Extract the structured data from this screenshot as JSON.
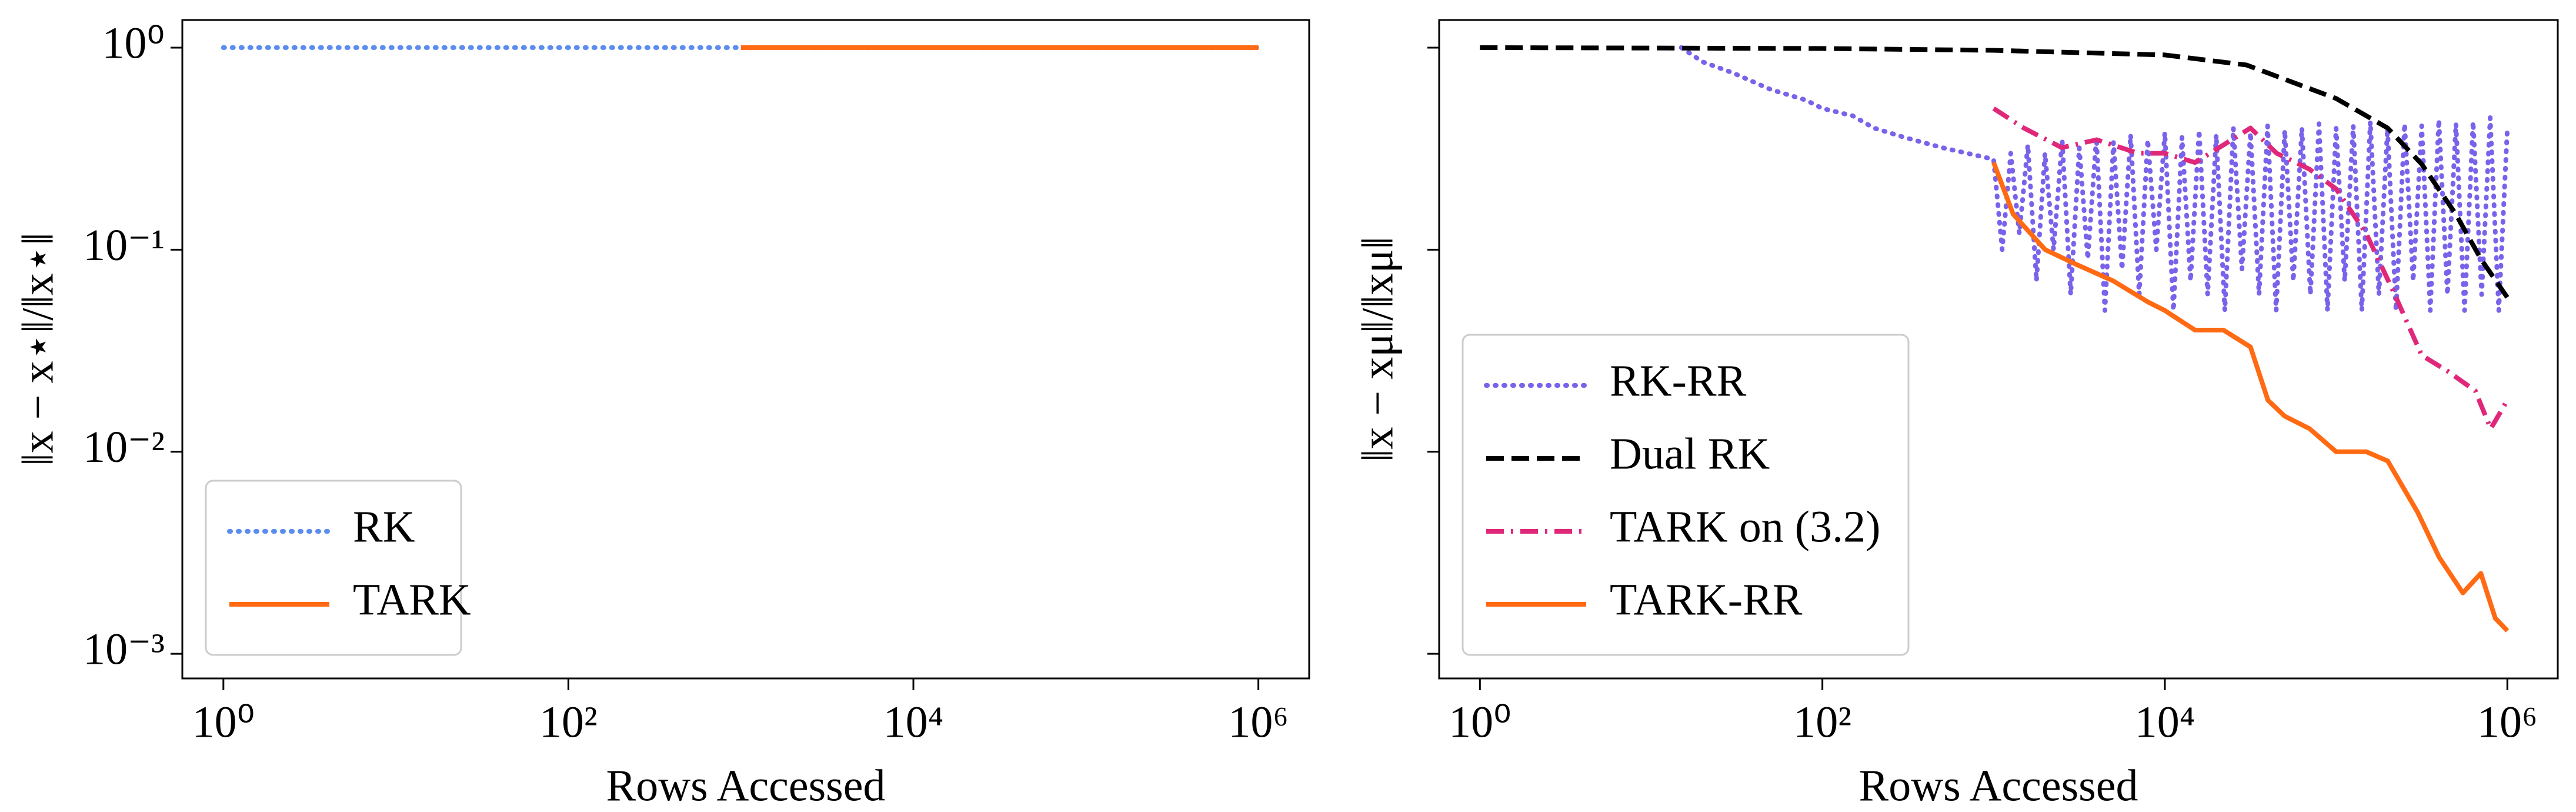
{
  "chart_data": [
    {
      "type": "line",
      "xlabel": "Rows Accessed",
      "ylabel": "‖x − x⋆‖/‖x⋆‖",
      "xscale": "log",
      "yscale": "log",
      "xlim": [
        0.578,
        1970000
      ],
      "ylim": [
        0.000755,
        1.37
      ],
      "xticks": [
        {
          "value": 1,
          "label": "10⁰"
        },
        {
          "value": 100,
          "label": "10²"
        },
        {
          "value": 10000,
          "label": "10⁴"
        },
        {
          "value": 1000000,
          "label": "10⁶"
        }
      ],
      "yticks": [
        {
          "value": 1,
          "label": "10⁰"
        },
        {
          "value": 0.1,
          "label": "10⁻¹"
        },
        {
          "value": 0.01,
          "label": "10⁻²"
        },
        {
          "value": 0.001,
          "label": "10⁻³"
        }
      ],
      "legend": "lower left",
      "series": [
        {
          "name": "RK",
          "color": "#5b8cef",
          "style": "dotted",
          "x": [
            1,
            1000000
          ],
          "values": [
            1,
            1
          ]
        },
        {
          "name": "TARK",
          "color": "#ff6a13",
          "style": "solid",
          "x": [
            1000,
            1000000
          ],
          "values": [
            1,
            1
          ]
        }
      ]
    },
    {
      "type": "line",
      "xlabel": "Rows Accessed",
      "ylabel": "‖x − xμ‖/‖xμ‖",
      "xscale": "log",
      "yscale": "log",
      "xlim": [
        0.578,
        1970000
      ],
      "ylim": [
        0.000755,
        1.37
      ],
      "xticks": [
        {
          "value": 1,
          "label": "10⁰"
        },
        {
          "value": 100,
          "label": "10²"
        },
        {
          "value": 10000,
          "label": "10⁴"
        },
        {
          "value": 1000000,
          "label": "10⁶"
        }
      ],
      "yticks": [
        1,
        0.1,
        0.01,
        0.001
      ],
      "show_ytick_labels": false,
      "legend": "lower left",
      "series": [
        {
          "name": "RK-RR",
          "color": "#7a62ea",
          "style": "dotted",
          "x": [
            15,
            20,
            30,
            50,
            80,
            100,
            150,
            200,
            300,
            500,
            700,
            1000,
            1122,
            1259,
            1413,
            1585,
            1778,
            1995,
            2239,
            2512,
            2818,
            3162,
            3548,
            3981,
            4467,
            5012,
            5623,
            6310,
            7079,
            7943,
            8913,
            10000,
            11220,
            12589,
            14125,
            15849,
            17783,
            19953,
            22387,
            25119,
            28184,
            31623,
            35481,
            39811,
            44668,
            50119,
            56234,
            63096,
            70795,
            79433,
            89125,
            100000,
            112202,
            125893,
            141254,
            158489,
            177828,
            199526,
            223872,
            251189,
            281838,
            316228,
            354813,
            398107,
            446684,
            501187,
            562341,
            630957,
            707946,
            794328,
            891251,
            1000000
          ],
          "values": [
            1,
            0.85,
            0.75,
            0.62,
            0.55,
            0.5,
            0.46,
            0.4,
            0.36,
            0.32,
            0.3,
            0.28,
            0.1,
            0.3,
            0.12,
            0.33,
            0.07,
            0.3,
            0.1,
            0.35,
            0.06,
            0.32,
            0.09,
            0.36,
            0.05,
            0.34,
            0.08,
            0.37,
            0.06,
            0.35,
            0.1,
            0.38,
            0.05,
            0.36,
            0.07,
            0.39,
            0.06,
            0.37,
            0.05,
            0.4,
            0.08,
            0.38,
            0.06,
            0.41,
            0.05,
            0.39,
            0.07,
            0.4,
            0.06,
            0.42,
            0.05,
            0.4,
            0.07,
            0.41,
            0.05,
            0.43,
            0.06,
            0.4,
            0.05,
            0.42,
            0.07,
            0.41,
            0.05,
            0.44,
            0.06,
            0.42,
            0.05,
            0.43,
            0.06,
            0.45,
            0.05,
            0.4
          ]
        },
        {
          "name": "Dual RK",
          "color": "#000000",
          "style": "dashed",
          "x": [
            1,
            100,
            1000,
            10000,
            30000,
            100000,
            200000,
            316228,
            500000,
            700000,
            1000000
          ],
          "values": [
            1,
            0.99,
            0.97,
            0.92,
            0.82,
            0.56,
            0.4,
            0.265,
            0.15,
            0.09,
            0.058
          ]
        },
        {
          "name": "TARK on (3.2)",
          "color": "#e0287a",
          "style": "dashdot",
          "x": [
            1000,
            1500,
            2500,
            4000,
            7000,
            10000,
            15000,
            22000,
            31623,
            45000,
            70000,
            100000,
            150000,
            220000,
            316228,
            450000,
            650000,
            800000,
            1000000
          ],
          "values": [
            0.5,
            0.4,
            0.32,
            0.35,
            0.3,
            0.3,
            0.27,
            0.33,
            0.4,
            0.3,
            0.25,
            0.2,
            0.12,
            0.06,
            0.03,
            0.025,
            0.02,
            0.013,
            0.018
          ]
        },
        {
          "name": "TARK-RR",
          "color": "#ff6a13",
          "style": "solid",
          "x": [
            1000,
            1300,
            2000,
            3000,
            5000,
            8000,
            10000,
            15000,
            22000,
            31623,
            40000,
            50000,
            70000,
            100000,
            150000,
            200000,
            300000,
            400000,
            550000,
            700000,
            850000,
            1000000
          ],
          "values": [
            0.27,
            0.15,
            0.1,
            0.085,
            0.07,
            0.055,
            0.05,
            0.04,
            0.04,
            0.033,
            0.018,
            0.015,
            0.013,
            0.01,
            0.01,
            0.009,
            0.005,
            0.003,
            0.002,
            0.0025,
            0.0015,
            0.0013
          ]
        }
      ]
    }
  ]
}
